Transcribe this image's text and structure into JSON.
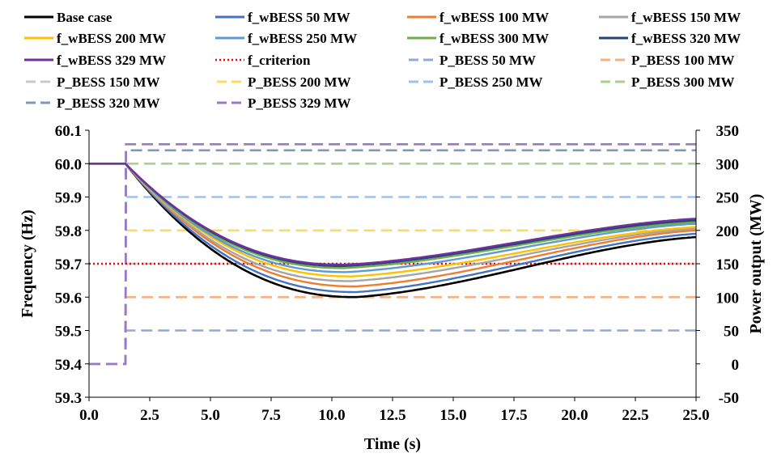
{
  "chart_data": {
    "type": "line",
    "title": "",
    "xlabel": "Time (s)",
    "ylabel": "Frequency (Hz)",
    "y2label": "Power output (MW)",
    "xlim": [
      0,
      25
    ],
    "ylim": [
      59.3,
      60.1
    ],
    "y2lim": [
      -50,
      350
    ],
    "xticks": [
      "0.0",
      "2.5",
      "5.0",
      "7.5",
      "10.0",
      "12.5",
      "15.0",
      "17.5",
      "20.0",
      "22.5",
      "25.0"
    ],
    "yticks": [
      "59.3",
      "59.4",
      "59.5",
      "59.6",
      "59.7",
      "59.8",
      "59.9",
      "60.0",
      "60.1"
    ],
    "y2ticks": [
      "-50",
      "0",
      "50",
      "100",
      "150",
      "200",
      "250",
      "300",
      "350"
    ],
    "grid": false,
    "legend_position": "top",
    "disturbance_time": 1.5,
    "series": [
      {
        "name": "Base case",
        "kind": "freq",
        "color": "#000000",
        "nadir": 59.6,
        "nadir_time": 11.0,
        "final": 59.78
      },
      {
        "name": "f_wBESS 50 MW",
        "kind": "freq",
        "color": "#4472C4",
        "nadir": 59.615,
        "nadir_time": 11.0,
        "final": 59.79
      },
      {
        "name": "f_wBESS 100 MW",
        "kind": "freq",
        "color": "#ED7D31",
        "nadir": 59.632,
        "nadir_time": 11.0,
        "final": 59.8
      },
      {
        "name": "f_wBESS 150 MW",
        "kind": "freq",
        "color": "#A5A5A5",
        "nadir": 59.648,
        "nadir_time": 10.8,
        "final": 59.805
      },
      {
        "name": "f_wBESS 200 MW",
        "kind": "freq",
        "color": "#FFC000",
        "nadir": 59.662,
        "nadir_time": 10.8,
        "final": 59.81
      },
      {
        "name": "f_wBESS 250 MW",
        "kind": "freq",
        "color": "#5B9BD5",
        "nadir": 59.675,
        "nadir_time": 10.6,
        "final": 59.82
      },
      {
        "name": "f_wBESS 300 MW",
        "kind": "freq",
        "color": "#70AD47",
        "nadir": 59.687,
        "nadir_time": 10.5,
        "final": 59.825
      },
      {
        "name": "f_wBESS 320 MW",
        "kind": "freq",
        "color": "#264478",
        "nadir": 59.693,
        "nadir_time": 10.5,
        "final": 59.83
      },
      {
        "name": "f_wBESS 329 MW",
        "kind": "freq",
        "color": "#7030A0",
        "nadir": 59.697,
        "nadir_time": 10.5,
        "final": 59.835
      },
      {
        "name": "f_criterion",
        "kind": "criterion",
        "color": "#FF0000",
        "value": 59.7
      },
      {
        "name": "P_BESS 50 MW",
        "kind": "power",
        "color": "#8FAADC",
        "value": 50
      },
      {
        "name": "P_BESS 100 MW",
        "kind": "power",
        "color": "#F4B183",
        "value": 100
      },
      {
        "name": "P_BESS 150 MW",
        "kind": "power",
        "color": "#C9C9C9",
        "value": 150
      },
      {
        "name": "P_BESS 200 MW",
        "kind": "power",
        "color": "#FFD966",
        "value": 200
      },
      {
        "name": "P_BESS 250 MW",
        "kind": "power",
        "color": "#9DC3E6",
        "value": 250
      },
      {
        "name": "P_BESS 300 MW",
        "kind": "power",
        "color": "#A9D18E",
        "value": 300
      },
      {
        "name": "P_BESS 320 MW",
        "kind": "power",
        "color": "#8497B0",
        "value": 320
      },
      {
        "name": "P_BESS 329 MW",
        "kind": "power",
        "color": "#9E77C9",
        "value": 329
      }
    ]
  }
}
